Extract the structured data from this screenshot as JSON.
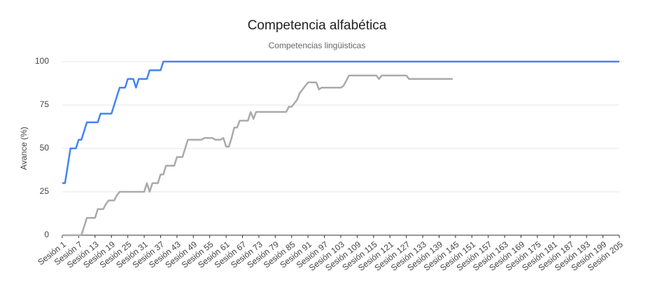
{
  "chart_data": {
    "type": "line",
    "title": "Competencia alfabética",
    "subtitle": "Competencias lingüisticas",
    "y_label": "Avance (%)",
    "categories": [
      "Sesión 1",
      null,
      null,
      null,
      null,
      null,
      "Sesión 7",
      null,
      null,
      null,
      null,
      null,
      "Sesión 13",
      null,
      null,
      null,
      null,
      null,
      "Sesión 19",
      null,
      null,
      null,
      null,
      null,
      "Sesión 25",
      null,
      null,
      null,
      null,
      null,
      "Sesión 31",
      null,
      null,
      null,
      null,
      null,
      "Sesión 37",
      null,
      null,
      null,
      null,
      null,
      "Sesión 43",
      null,
      null,
      null,
      null,
      null,
      "Sesión 49",
      null,
      null,
      null,
      null,
      null,
      "Sesión 55",
      null,
      null,
      null,
      null,
      null,
      "Sesión 61",
      null,
      null,
      null,
      null,
      null,
      "Sesión 67",
      null,
      null,
      null,
      null,
      null,
      "Sesión 73",
      null,
      null,
      null,
      null,
      null,
      "Sesión 79",
      null,
      null,
      null,
      null,
      null,
      "Sesión 85",
      null,
      null,
      null,
      null,
      null,
      "Sesión 91",
      null,
      null,
      null,
      null,
      null,
      "Sesión 97",
      null,
      null,
      null,
      null,
      null,
      "Sesión 103",
      null,
      null,
      null,
      null,
      null,
      "Sesión 109",
      null,
      null,
      null,
      null,
      null,
      "Sesión 115",
      null,
      null,
      null,
      null,
      null,
      "Sesión 121",
      null,
      null,
      null,
      null,
      null,
      "Sesión 127",
      null,
      null,
      null,
      null,
      null,
      "Sesión 133",
      null,
      null,
      null,
      null,
      null,
      "Sesión 139",
      null,
      null,
      null,
      null,
      null,
      "Sesión 145",
      null,
      null,
      null,
      null,
      null,
      "Sesión 151",
      null,
      null,
      null,
      null,
      null,
      "Sesión 157",
      null,
      null,
      null,
      null,
      null,
      "Sesión 163",
      null,
      null,
      null,
      null,
      null,
      "Sesión 169",
      null,
      null,
      null,
      null,
      null,
      "Sesión 175",
      null,
      null,
      null,
      null,
      null,
      "Sesión 181",
      null,
      null,
      null,
      null,
      null,
      "Sesión 187",
      null,
      null,
      null,
      null,
      null,
      "Sesión 193",
      null,
      null,
      null,
      null,
      null,
      "Sesión 199",
      null,
      null,
      null,
      null,
      null,
      "Sesión 205"
    ],
    "series": [
      {
        "color": "#4285f4",
        "values": [
          30,
          30,
          40,
          50,
          50,
          50,
          55,
          55,
          60,
          65,
          65,
          65,
          65,
          65,
          70,
          70,
          70,
          70,
          70,
          75,
          80,
          85,
          85,
          85,
          90,
          90,
          90,
          85,
          90,
          90,
          90,
          90,
          95,
          95,
          95,
          95,
          95,
          100,
          100,
          100,
          100,
          100,
          100,
          100,
          100,
          100,
          100,
          100,
          100,
          100,
          100,
          100,
          100,
          100,
          100,
          100,
          100,
          100,
          100,
          100,
          100,
          100,
          100,
          100,
          100,
          100,
          100,
          100,
          100,
          100,
          100,
          100,
          100,
          100,
          100,
          100,
          100,
          100,
          100,
          100,
          100,
          100,
          100,
          100,
          100,
          100,
          100,
          100,
          100,
          100,
          100,
          100,
          100,
          100,
          100,
          100,
          100,
          100,
          100,
          100,
          100,
          100,
          100,
          100,
          100,
          100,
          100,
          100,
          100,
          100,
          100,
          100,
          100,
          100,
          100,
          100,
          100,
          100,
          100,
          100,
          100,
          100,
          100,
          100,
          100,
          100,
          100,
          100,
          100,
          100,
          100,
          100,
          100,
          100,
          100,
          100,
          100,
          100,
          100,
          100,
          100,
          100,
          100,
          100,
          100,
          100,
          100,
          100,
          100,
          100,
          100,
          100,
          100,
          100,
          100,
          100,
          100,
          100,
          100,
          100,
          100,
          100,
          100,
          100,
          100,
          100,
          100,
          100,
          100,
          100,
          100,
          100,
          100,
          100,
          100,
          100,
          100,
          100,
          100,
          100,
          100,
          100,
          100,
          100,
          100,
          100,
          100,
          100,
          100,
          100,
          100,
          100,
          100,
          100,
          100,
          100,
          100,
          100,
          100,
          100,
          100,
          100,
          100,
          100,
          100
        ]
      },
      {
        "color": "#aaaaaa",
        "values": [
          0,
          0,
          0,
          0,
          0,
          0,
          0,
          0,
          5,
          10,
          10,
          10,
          10,
          15,
          15,
          15,
          18,
          20,
          20,
          20,
          23,
          25,
          25,
          25,
          25,
          25,
          25,
          25,
          25,
          25,
          25,
          30,
          25,
          30,
          30,
          30,
          35,
          35,
          40,
          40,
          40,
          40,
          45,
          45,
          45,
          50,
          55,
          55,
          55,
          55,
          55,
          55,
          56,
          56,
          56,
          56,
          55,
          55,
          55,
          56,
          51,
          51,
          56,
          62,
          62,
          66,
          66,
          66,
          66,
          71,
          67,
          71,
          71,
          71,
          71,
          71,
          71,
          71,
          71,
          71,
          71,
          71,
          71,
          74,
          74,
          76,
          78,
          82,
          84,
          86,
          88,
          88,
          88,
          88,
          84,
          85,
          85,
          85,
          85,
          85,
          85,
          85,
          85,
          86,
          89,
          92,
          92,
          92,
          92,
          92,
          92,
          92,
          92,
          92,
          92,
          92,
          90,
          92,
          92,
          92,
          92,
          92,
          92,
          92,
          92,
          92,
          92,
          90,
          90,
          90,
          90,
          90,
          90,
          90,
          90,
          90,
          90,
          90,
          90,
          90,
          90,
          90,
          90,
          90,
          null,
          null,
          null,
          null,
          null,
          null,
          null,
          null,
          null,
          null,
          null,
          null,
          null,
          null,
          null,
          null,
          null,
          null,
          null,
          null,
          null,
          null,
          null,
          null,
          null,
          null,
          null,
          null,
          null,
          null,
          null,
          null,
          null,
          null,
          null,
          null,
          null,
          null,
          null,
          null,
          null,
          null,
          null,
          null,
          null,
          null,
          null,
          null,
          null,
          null,
          null,
          null,
          null,
          null,
          null,
          null,
          null,
          null,
          null,
          null,
          null
        ]
      }
    ],
    "ylim": [
      0,
      100
    ],
    "yticks": [
      0,
      25,
      50,
      75,
      100
    ],
    "grid": true
  }
}
